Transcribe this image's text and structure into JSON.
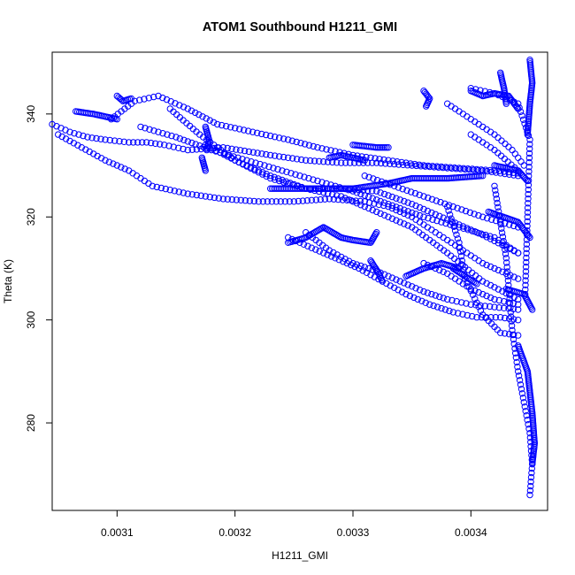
{
  "chart_data": {
    "type": "scatter",
    "title": "ATOM1 Southbound H1211_GMI",
    "xlabel": "H1211_GMI",
    "ylabel": "Theta (K)",
    "xlim": [
      0.003045,
      0.003465
    ],
    "ylim": [
      263,
      352
    ],
    "xticks": [
      0.0031,
      0.0032,
      0.0033,
      0.0034
    ],
    "xtick_labels": [
      "0.0031",
      "0.0032",
      "0.0033",
      "0.0034"
    ],
    "yticks": [
      280,
      300,
      320,
      340
    ],
    "ytick_labels": [
      "280",
      "300",
      "320",
      "340"
    ],
    "grid": false,
    "legend": "none",
    "marker": "open-circle",
    "color": "#0000ff",
    "series": [
      {
        "segments": [
          [
            [
              0.003095,
              339.0
            ],
            [
              0.003115,
              342.5
            ],
            [
              0.003135,
              343.5
            ],
            [
              0.00316,
              341.0
            ],
            [
              0.003185,
              338.0
            ],
            [
              0.003215,
              336.5
            ],
            [
              0.003245,
              335.0
            ],
            [
              0.00327,
              333.5
            ],
            [
              0.0033,
              332.0
            ],
            [
              0.00333,
              331.0
            ],
            [
              0.00336,
              330.0
            ],
            [
              0.00339,
              329.5
            ],
            [
              0.00342,
              329.0
            ],
            [
              0.00344,
              328.5
            ]
          ],
          [
            [
              0.003045,
              338.0
            ],
            [
              0.00306,
              336.5
            ],
            [
              0.003075,
              335.5
            ],
            [
              0.00309,
              335.0
            ],
            [
              0.00311,
              334.5
            ],
            [
              0.003125,
              334.5
            ],
            [
              0.00314,
              334.0
            ],
            [
              0.00316,
              333.0
            ],
            [
              0.00319,
              333.5
            ],
            [
              0.00323,
              332.0
            ],
            [
              0.00326,
              331.0
            ],
            [
              0.00329,
              330.5
            ],
            [
              0.00332,
              330.5
            ],
            [
              0.00335,
              330.0
            ],
            [
              0.00338,
              329.5
            ],
            [
              0.00341,
              329.0
            ],
            [
              0.00344,
              328.0
            ]
          ],
          [
            [
              0.00305,
              336.0
            ],
            [
              0.00307,
              333.5
            ],
            [
              0.00309,
              331.0
            ],
            [
              0.00311,
              329.0
            ],
            [
              0.00313,
              326.0
            ],
            [
              0.00316,
              324.5
            ],
            [
              0.00319,
              323.5
            ],
            [
              0.00322,
              323.0
            ],
            [
              0.00325,
              323.0
            ],
            [
              0.00328,
              323.5
            ],
            [
              0.00331,
              323.0
            ],
            [
              0.00333,
              322.0
            ],
            [
              0.00335,
              320.0
            ],
            [
              0.00337,
              317.0
            ],
            [
              0.00339,
              314.0
            ],
            [
              0.00341,
              311.0
            ],
            [
              0.00344,
              308.0
            ]
          ],
          [
            [
              0.00312,
              337.5
            ],
            [
              0.00315,
              335.5
            ],
            [
              0.00318,
              333.0
            ],
            [
              0.00321,
              331.0
            ],
            [
              0.00324,
              329.0
            ],
            [
              0.00327,
              327.0
            ],
            [
              0.0033,
              325.0
            ],
            [
              0.00333,
              322.5
            ],
            [
              0.00336,
              320.0
            ],
            [
              0.00339,
              318.0
            ],
            [
              0.00342,
              316.0
            ],
            [
              0.00344,
              313.0
            ]
          ],
          [
            [
              0.003145,
              341.0
            ],
            [
              0.00317,
              336.0
            ],
            [
              0.0032,
              331.0
            ],
            [
              0.00323,
              327.5
            ],
            [
              0.00326,
              325.5
            ],
            [
              0.00329,
              325.5
            ],
            [
              0.00332,
              325.0
            ],
            [
              0.00335,
              322.5
            ],
            [
              0.00338,
              319.5
            ],
            [
              0.00341,
              316.5
            ],
            [
              0.00344,
              313.0
            ]
          ],
          [
            [
              0.003175,
              334.0
            ],
            [
              0.0032,
              331.0
            ],
            [
              0.00323,
              328.0
            ],
            [
              0.00326,
              325.5
            ],
            [
              0.00329,
              324.0
            ],
            [
              0.00332,
              321.0
            ],
            [
              0.00335,
              318.0
            ],
            [
              0.00338,
              313.0
            ],
            [
              0.00341,
              307.5
            ],
            [
              0.00344,
              304.0
            ]
          ],
          [
            [
              0.003245,
              316.0
            ],
            [
              0.003265,
              314.0
            ],
            [
              0.003285,
              312.0
            ],
            [
              0.003305,
              310.0
            ],
            [
              0.003325,
              307.5
            ],
            [
              0.003345,
              305.0
            ],
            [
              0.003365,
              303.0
            ],
            [
              0.003385,
              301.5
            ],
            [
              0.003405,
              300.5
            ],
            [
              0.003425,
              300.5
            ],
            [
              0.00344,
              300.0
            ]
          ],
          [
            [
              0.00326,
              317.0
            ],
            [
              0.00328,
              313.5
            ],
            [
              0.0033,
              311.0
            ],
            [
              0.00332,
              309.5
            ],
            [
              0.00334,
              307.5
            ],
            [
              0.00336,
              305.5
            ],
            [
              0.00338,
              304.0
            ],
            [
              0.0034,
              303.0
            ],
            [
              0.00342,
              302.5
            ],
            [
              0.00344,
              302.0
            ]
          ],
          [
            [
              0.00331,
              328.0
            ],
            [
              0.003335,
              326.0
            ],
            [
              0.00336,
              324.0
            ],
            [
              0.003385,
              322.0
            ],
            [
              0.00341,
              320.0
            ],
            [
              0.00344,
              318.0
            ]
          ],
          [
            [
              0.00338,
              322.0
            ],
            [
              0.00339,
              315.0
            ],
            [
              0.003395,
              308.0
            ],
            [
              0.00341,
              301.0
            ],
            [
              0.003425,
              297.5
            ],
            [
              0.00344,
              297.0
            ]
          ],
          [
            [
              0.00336,
              311.0
            ],
            [
              0.00338,
              309.0
            ],
            [
              0.0034,
              306.0
            ],
            [
              0.00342,
              304.0
            ],
            [
              0.00344,
              303.0
            ]
          ],
          [
            [
              0.00338,
              342.0
            ],
            [
              0.0034,
              339.0
            ],
            [
              0.00342,
              336.0
            ],
            [
              0.003435,
              333.0
            ],
            [
              0.003445,
              330.0
            ]
          ],
          [
            [
              0.0034,
              336.0
            ],
            [
              0.00342,
              333.0
            ],
            [
              0.00344,
              329.0
            ]
          ],
          [
            [
              0.00342,
              326.0
            ],
            [
              0.00343,
              312.0
            ],
            [
              0.003435,
              298.0
            ],
            [
              0.00344,
              290.0
            ],
            [
              0.003445,
              284.0
            ],
            [
              0.00345,
              278.0
            ],
            [
              0.003452,
              272.0
            ],
            [
              0.00345,
              266.0
            ]
          ],
          [
            [
              0.0034,
              345.0
            ],
            [
              0.00342,
              344.0
            ],
            [
              0.00344,
              342.0
            ],
            [
              0.00345,
              335.0
            ],
            [
              0.003448,
              320.0
            ],
            [
              0.003446,
              305.0
            ]
          ]
        ]
      },
      {
        "segments": [
          [
            [
              0.003065,
              340.5
            ],
            [
              0.00308,
              340.0
            ],
            [
              0.00309,
              339.5
            ],
            [
              0.0031,
              339.0
            ]
          ],
          [
            [
              0.0031,
              343.5
            ],
            [
              0.003105,
              342.5
            ],
            [
              0.003112,
              343.0
            ]
          ],
          [
            [
              0.003175,
              337.5
            ],
            [
              0.003178,
              335.0
            ],
            [
              0.003176,
              333.0
            ]
          ],
          [
            [
              0.003172,
              331.5
            ],
            [
              0.003175,
              329.0
            ]
          ],
          [
            [
              0.00328,
              331.5
            ],
            [
              0.00329,
              332.0
            ],
            [
              0.0033,
              331.5
            ],
            [
              0.00331,
              331.0
            ]
          ],
          [
            [
              0.0033,
              334.0
            ],
            [
              0.00332,
              333.5
            ],
            [
              0.00333,
              333.5
            ]
          ],
          [
            [
              0.00323,
              325.5
            ],
            [
              0.00326,
              325.5
            ],
            [
              0.0033,
              325.5
            ],
            [
              0.00333,
              326.5
            ],
            [
              0.00335,
              327.5
            ],
            [
              0.00338,
              327.5
            ],
            [
              0.00341,
              328.0
            ]
          ],
          [
            [
              0.003245,
              315.0
            ],
            [
              0.00326,
              316.0
            ],
            [
              0.003275,
              318.0
            ],
            [
              0.00329,
              316.0
            ],
            [
              0.0033,
              315.5
            ],
            [
              0.003315,
              315.0
            ],
            [
              0.00332,
              317.0
            ]
          ],
          [
            [
              0.003315,
              311.5
            ],
            [
              0.003322,
              309.0
            ],
            [
              0.003325,
              307.5
            ]
          ],
          [
            [
              0.003345,
              308.5
            ],
            [
              0.00336,
              310.0
            ],
            [
              0.003375,
              311.0
            ],
            [
              0.00339,
              310.0
            ]
          ],
          [
            [
              0.003385,
              310.0
            ],
            [
              0.003395,
              308.5
            ],
            [
              0.003405,
              307.0
            ]
          ],
          [
            [
              0.00336,
              344.5
            ],
            [
              0.003365,
              343.0
            ],
            [
              0.003362,
              341.5
            ]
          ],
          [
            [
              0.0034,
              344.5
            ],
            [
              0.00341,
              343.5
            ],
            [
              0.00342,
              344.0
            ],
            [
              0.003432,
              343.5
            ],
            [
              0.00344,
              341.0
            ]
          ],
          [
            [
              0.003425,
              348.0
            ],
            [
              0.003428,
              345.0
            ],
            [
              0.00343,
              342.0
            ]
          ],
          [
            [
              0.00345,
              350.5
            ],
            [
              0.003452,
              346.0
            ],
            [
              0.00345,
              342.0
            ],
            [
              0.003448,
              336.0
            ]
          ],
          [
            [
              0.00342,
              330.0
            ],
            [
              0.00344,
              329.0
            ],
            [
              0.003448,
              327.0
            ]
          ],
          [
            [
              0.003415,
              321.0
            ],
            [
              0.00344,
              319.0
            ],
            [
              0.00345,
              316.0
            ]
          ],
          [
            [
              0.00343,
              306.0
            ],
            [
              0.003445,
              305.0
            ],
            [
              0.003452,
              302.0
            ]
          ],
          [
            [
              0.00344,
              295.0
            ],
            [
              0.003448,
              290.0
            ],
            [
              0.003452,
              282.0
            ],
            [
              0.003454,
              276.0
            ],
            [
              0.003452,
              272.0
            ]
          ]
        ]
      }
    ]
  }
}
